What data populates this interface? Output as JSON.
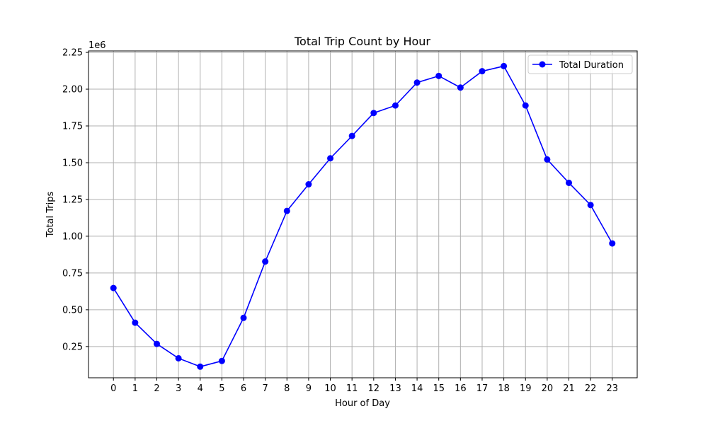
{
  "chart_data": {
    "type": "line",
    "title": "Total Trip Count by Hour",
    "xlabel": "Hour of Day",
    "ylabel": "Total Trips",
    "y_offset_label": "1e6",
    "x": [
      0,
      1,
      2,
      3,
      4,
      5,
      6,
      7,
      8,
      9,
      10,
      11,
      12,
      13,
      14,
      15,
      16,
      17,
      18,
      19,
      20,
      21,
      22,
      23
    ],
    "x_tick_labels": [
      "0",
      "1",
      "2",
      "3",
      "4",
      "5",
      "6",
      "7",
      "8",
      "9",
      "10",
      "11",
      "12",
      "13",
      "14",
      "15",
      "16",
      "17",
      "18",
      "19",
      "20",
      "21",
      "22",
      "23"
    ],
    "y_ticks": [
      0.25,
      0.5,
      0.75,
      1.0,
      1.25,
      1.5,
      1.75,
      2.0,
      2.25
    ],
    "y_tick_labels": [
      "0.25",
      "0.50",
      "0.75",
      "1.00",
      "1.25",
      "1.50",
      "1.75",
      "2.00",
      "2.25"
    ],
    "ylim": [
      0.0375,
      2.26
    ],
    "xlim": [
      -1.15,
      24.15
    ],
    "grid": true,
    "legend_position": "upper-right",
    "series": [
      {
        "name": "Total Duration",
        "color": "#0000ff",
        "marker": "circle",
        "values": [
          0.648,
          0.412,
          0.268,
          0.17,
          0.113,
          0.152,
          0.445,
          0.828,
          1.172,
          1.353,
          1.53,
          1.682,
          1.838,
          1.889,
          2.045,
          2.09,
          2.011,
          2.122,
          2.157,
          1.889,
          1.522,
          1.363,
          1.212,
          0.951
        ]
      }
    ]
  }
}
